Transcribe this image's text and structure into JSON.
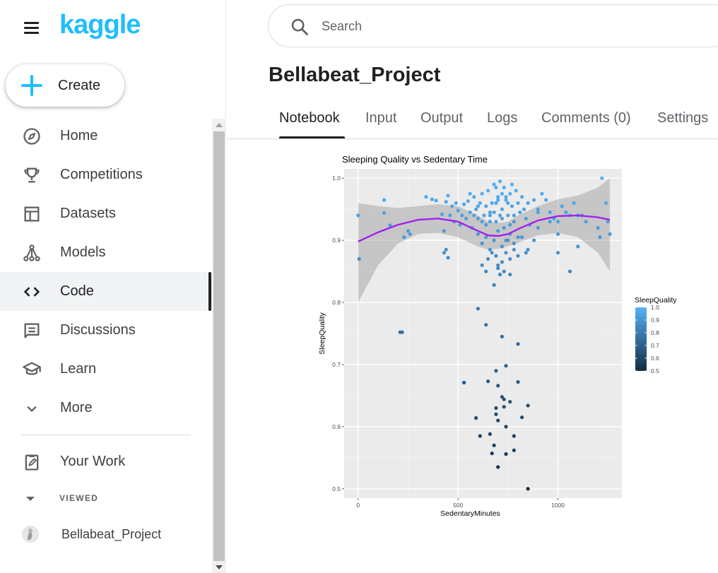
{
  "app": {
    "logo_text": "kaggle",
    "brand_color": "#20beff"
  },
  "sidebar": {
    "create_label": "Create",
    "items": [
      {
        "label": "Home",
        "icon": "compass-icon"
      },
      {
        "label": "Competitions",
        "icon": "trophy-icon"
      },
      {
        "label": "Datasets",
        "icon": "table-icon"
      },
      {
        "label": "Models",
        "icon": "models-icon"
      },
      {
        "label": "Code",
        "icon": "code-icon",
        "active": true
      },
      {
        "label": "Discussions",
        "icon": "chat-icon"
      },
      {
        "label": "Learn",
        "icon": "school-icon"
      },
      {
        "label": "More",
        "icon": "chevron-down-icon"
      }
    ],
    "your_work_label": "Your Work",
    "viewed_label": "VIEWED",
    "recent": [
      {
        "label": "Bellabeat_Project"
      }
    ]
  },
  "search": {
    "placeholder": "Search"
  },
  "notebook": {
    "title": "Bellabeat_Project",
    "tabs": [
      {
        "label": "Notebook",
        "active": true
      },
      {
        "label": "Input"
      },
      {
        "label": "Output"
      },
      {
        "label": "Logs"
      },
      {
        "label": "Comments (0)"
      },
      {
        "label": "Settings"
      }
    ]
  },
  "chart_data": {
    "type": "scatter",
    "title": "Sleeping Quality vs Sedentary Time",
    "xlabel": "SedentaryMinutes",
    "ylabel": "SleepQuality",
    "xlim": [
      -70,
      1320
    ],
    "ylim": [
      0.485,
      1.015
    ],
    "xticks": [
      0,
      500,
      1000
    ],
    "yticks": [
      0.5,
      0.6,
      0.7,
      0.8,
      0.9,
      1.0
    ],
    "ytick_labels": [
      "0.5",
      "0.6",
      "0.7",
      "0.8",
      "0.9",
      "1.0"
    ],
    "grid": true,
    "legend": {
      "title": "SleepQuality",
      "placement": "right",
      "ticks": [
        "1.0",
        "0.9",
        "0.8",
        "0.7",
        "0.6",
        "0.5"
      ],
      "color_low": "#132b43",
      "color_high": "#56b1f7"
    },
    "smooth_color": "#a020f0",
    "ribbon_color": "#999999",
    "panel_color": "#ebebeb",
    "smooth": {
      "x": [
        0,
        100,
        200,
        300,
        400,
        500,
        600,
        650,
        700,
        750,
        800,
        900,
        1000,
        1100,
        1200,
        1260
      ],
      "y": [
        0.898,
        0.913,
        0.925,
        0.933,
        0.935,
        0.93,
        0.915,
        0.908,
        0.907,
        0.91,
        0.918,
        0.932,
        0.939,
        0.94,
        0.937,
        0.933
      ],
      "upper": [
        0.96,
        0.955,
        0.952,
        0.955,
        0.958,
        0.955,
        0.94,
        0.93,
        0.928,
        0.93,
        0.94,
        0.955,
        0.966,
        0.972,
        0.985,
        1.0
      ],
      "lower": [
        0.8,
        0.86,
        0.895,
        0.91,
        0.912,
        0.905,
        0.89,
        0.885,
        0.886,
        0.89,
        0.896,
        0.908,
        0.912,
        0.905,
        0.88,
        0.85
      ]
    },
    "points": [
      [
        0,
        0.94
      ],
      [
        5,
        0.87
      ],
      [
        130,
        0.965
      ],
      [
        130,
        0.944
      ],
      [
        160,
        0.924
      ],
      [
        230,
        0.905
      ],
      [
        250,
        0.915
      ],
      [
        260,
        0.91
      ],
      [
        220,
        0.752
      ],
      [
        340,
        0.97
      ],
      [
        370,
        0.966
      ],
      [
        390,
        0.964
      ],
      [
        420,
        0.942
      ],
      [
        430,
        0.915
      ],
      [
        440,
        0.962
      ],
      [
        450,
        0.972
      ],
      [
        460,
        0.94
      ],
      [
        470,
        0.955
      ],
      [
        480,
        0.93
      ],
      [
        490,
        0.96
      ],
      [
        430,
        0.88
      ],
      [
        450,
        0.872
      ],
      [
        440,
        0.885
      ],
      [
        500,
        0.948
      ],
      [
        510,
        0.925
      ],
      [
        520,
        0.94
      ],
      [
        530,
        0.958
      ],
      [
        540,
        0.935
      ],
      [
        550,
        0.963
      ],
      [
        560,
        0.945
      ],
      [
        570,
        0.92
      ],
      [
        580,
        0.97
      ],
      [
        590,
        0.95
      ],
      [
        600,
        0.935
      ],
      [
        610,
        0.96
      ],
      [
        620,
        0.975
      ],
      [
        630,
        0.94
      ],
      [
        640,
        0.955
      ],
      [
        650,
        0.98
      ],
      [
        660,
        0.945
      ],
      [
        670,
        0.96
      ],
      [
        680,
        0.99
      ],
      [
        690,
        0.93
      ],
      [
        700,
        0.97
      ],
      [
        710,
        0.995
      ],
      [
        720,
        0.95
      ],
      [
        730,
        0.985
      ],
      [
        740,
        0.965
      ],
      [
        750,
        0.94
      ],
      [
        760,
        0.975
      ],
      [
        770,
        0.955
      ],
      [
        780,
        0.93
      ],
      [
        790,
        0.98
      ],
      [
        800,
        0.96
      ],
      [
        810,
        0.945
      ],
      [
        820,
        0.97
      ],
      [
        830,
        0.95
      ],
      [
        840,
        0.935
      ],
      [
        850,
        0.96
      ],
      [
        860,
        0.925
      ],
      [
        600,
        0.91
      ],
      [
        620,
        0.895
      ],
      [
        640,
        0.905
      ],
      [
        660,
        0.885
      ],
      [
        680,
        0.9
      ],
      [
        700,
        0.915
      ],
      [
        720,
        0.89
      ],
      [
        740,
        0.9
      ],
      [
        760,
        0.91
      ],
      [
        780,
        0.895
      ],
      [
        700,
        0.86
      ],
      [
        690,
        0.875
      ],
      [
        720,
        0.865
      ],
      [
        740,
        0.88
      ],
      [
        760,
        0.87
      ],
      [
        780,
        0.885
      ],
      [
        800,
        0.875
      ],
      [
        700,
        0.855
      ],
      [
        730,
        0.85
      ],
      [
        650,
        0.87
      ],
      [
        670,
        0.88
      ],
      [
        710,
        0.845
      ],
      [
        760,
        0.845
      ],
      [
        680,
        0.828
      ],
      [
        640,
        0.85
      ],
      [
        620,
        0.86
      ],
      [
        750,
        0.9
      ],
      [
        820,
        0.905
      ],
      [
        840,
        0.88
      ],
      [
        800,
        0.905
      ],
      [
        880,
        0.965
      ],
      [
        900,
        0.95
      ],
      [
        920,
        0.975
      ],
      [
        940,
        0.965
      ],
      [
        960,
        0.945
      ],
      [
        980,
        0.935
      ],
      [
        1000,
        0.93
      ],
      [
        1020,
        0.955
      ],
      [
        1040,
        0.945
      ],
      [
        1060,
        0.94
      ],
      [
        1080,
        0.96
      ],
      [
        1100,
        0.94
      ],
      [
        1120,
        0.94
      ],
      [
        1140,
        0.93
      ],
      [
        960,
        0.93
      ],
      [
        1000,
        0.91
      ],
      [
        1100,
        0.89
      ],
      [
        1000,
        0.88
      ],
      [
        1060,
        0.85
      ],
      [
        1200,
        0.92
      ],
      [
        1220,
        1.0
      ],
      [
        1240,
        0.96
      ],
      [
        1250,
        0.93
      ],
      [
        1260,
        0.91
      ],
      [
        1210,
        0.905
      ],
      [
        900,
        0.92
      ],
      [
        880,
        0.9
      ],
      [
        850,
        0.885
      ],
      [
        900,
        0.945
      ],
      [
        560,
        0.975
      ],
      [
        600,
        0.79
      ],
      [
        640,
        0.764
      ],
      [
        720,
        0.745
      ],
      [
        800,
        0.733
      ],
      [
        210,
        0.752
      ],
      [
        740,
        0.698
      ],
      [
        690,
        0.69
      ],
      [
        650,
        0.673
      ],
      [
        530,
        0.671
      ],
      [
        700,
        0.666
      ],
      [
        800,
        0.672
      ],
      [
        720,
        0.648
      ],
      [
        730,
        0.644
      ],
      [
        760,
        0.64
      ],
      [
        690,
        0.63
      ],
      [
        730,
        0.632
      ],
      [
        850,
        0.634
      ],
      [
        820,
        0.615
      ],
      [
        690,
        0.62
      ],
      [
        700,
        0.61
      ],
      [
        590,
        0.614
      ],
      [
        660,
        0.588
      ],
      [
        610,
        0.585
      ],
      [
        740,
        0.6
      ],
      [
        780,
        0.585
      ],
      [
        680,
        0.57
      ],
      [
        740,
        0.556
      ],
      [
        670,
        0.557
      ],
      [
        780,
        0.562
      ],
      [
        700,
        0.535
      ],
      [
        850,
        0.5
      ],
      [
        700,
        0.965
      ],
      [
        720,
        0.935
      ],
      [
        690,
        0.96
      ],
      [
        640,
        0.925
      ],
      [
        660,
        0.94
      ],
      [
        600,
        0.955
      ],
      [
        760,
        0.925
      ],
      [
        780,
        0.94
      ],
      [
        740,
        0.97
      ],
      [
        710,
        0.94
      ],
      [
        730,
        0.92
      ],
      [
        750,
        0.96
      ],
      [
        770,
        0.99
      ],
      [
        720,
        0.975
      ],
      [
        690,
        0.985
      ],
      [
        680,
        0.945
      ],
      [
        660,
        0.93
      ],
      [
        620,
        0.93
      ],
      [
        580,
        0.94
      ]
    ]
  }
}
